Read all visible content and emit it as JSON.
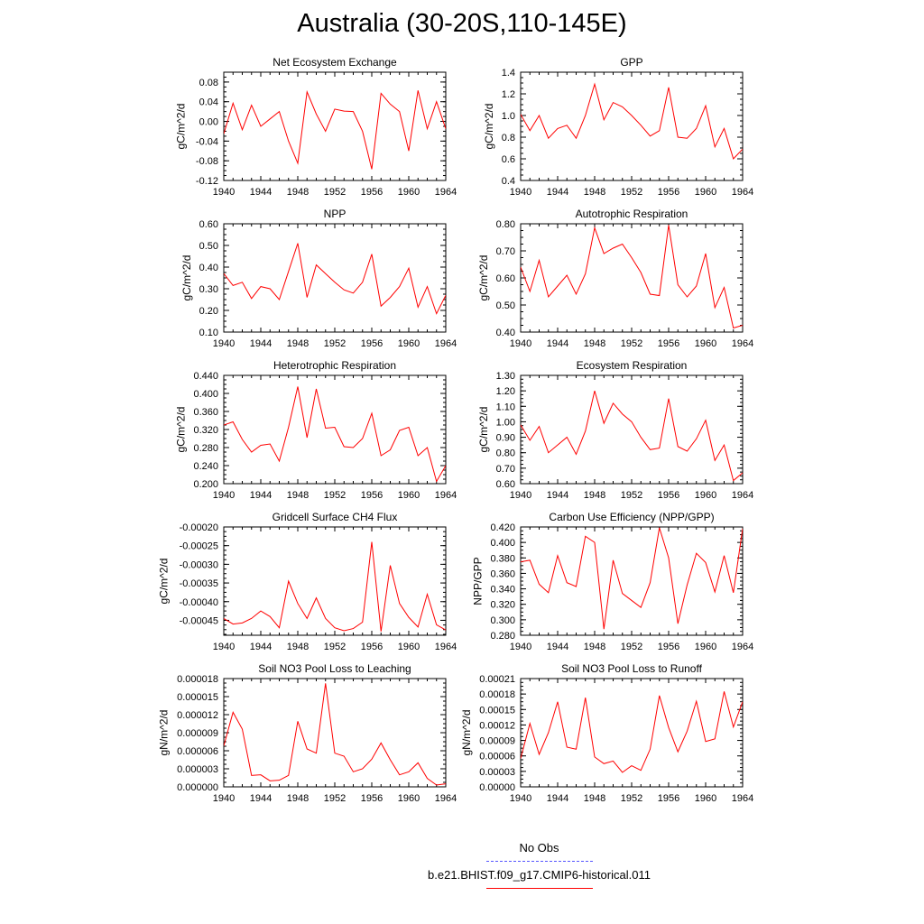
{
  "title": "Australia (30-20S,110-145E)",
  "colors": {
    "model": "#ff0000",
    "obs": "#5555ff",
    "axis": "#000000"
  },
  "legend": [
    {
      "label": "No Obs",
      "color": "#5555ff",
      "dash": "dashed"
    },
    {
      "label": "b.e21.BHIST.f09_g17.CMIP6-historical.011",
      "color": "#ff0000",
      "dash": "solid"
    }
  ],
  "chart_data": [
    {
      "type": "line",
      "title": "Net Ecosystem Exchange",
      "ylabel": "gC/m^2/d",
      "xlim": [
        1940,
        1964
      ],
      "xticks": [
        "1940",
        "1944",
        "1948",
        "1952",
        "1956",
        "1960",
        "1964"
      ],
      "ylim": [
        -0.12,
        0.1
      ],
      "yticks": [
        "-0.12",
        "-0.08",
        "-0.04",
        "0.00",
        "0.04",
        "0.08"
      ],
      "x": [
        1940,
        1941,
        1942,
        1943,
        1944,
        1945,
        1946,
        1947,
        1948,
        1949,
        1950,
        1951,
        1952,
        1953,
        1954,
        1955,
        1956,
        1957,
        1958,
        1959,
        1960,
        1961,
        1962,
        1963,
        1964
      ],
      "series": [
        {
          "values": [
            -0.025,
            0.037,
            -0.017,
            0.033,
            -0.01,
            0.005,
            0.02,
            -0.04,
            -0.085,
            0.06,
            0.015,
            -0.02,
            0.025,
            0.021,
            0.02,
            -0.02,
            -0.097,
            0.057,
            0.035,
            0.02,
            -0.06,
            0.063,
            -0.015,
            0.04,
            -0.015
          ]
        }
      ]
    },
    {
      "type": "line",
      "title": "GPP",
      "ylabel": "gC/m^2/d",
      "xlim": [
        1940,
        1964
      ],
      "xticks": [
        "1940",
        "1944",
        "1948",
        "1952",
        "1956",
        "1960",
        "1964"
      ],
      "ylim": [
        0.4,
        1.4
      ],
      "yticks": [
        "0.4",
        "0.6",
        "0.8",
        "1.0",
        "1.2",
        "1.4"
      ],
      "x": [
        1940,
        1941,
        1942,
        1943,
        1944,
        1945,
        1946,
        1947,
        1948,
        1949,
        1950,
        1951,
        1952,
        1953,
        1954,
        1955,
        1956,
        1957,
        1958,
        1959,
        1960,
        1961,
        1962,
        1963,
        1964
      ],
      "series": [
        {
          "values": [
            1.01,
            0.86,
            1.0,
            0.79,
            0.88,
            0.91,
            0.79,
            1.0,
            1.29,
            0.96,
            1.12,
            1.08,
            1.0,
            0.91,
            0.81,
            0.86,
            1.26,
            0.8,
            0.79,
            0.88,
            1.09,
            0.71,
            0.88,
            0.6,
            0.69
          ]
        }
      ]
    },
    {
      "type": "line",
      "title": "NPP",
      "ylabel": "gC/m^2/d",
      "xlim": [
        1940,
        1964
      ],
      "xticks": [
        "1940",
        "1944",
        "1948",
        "1952",
        "1956",
        "1960",
        "1964"
      ],
      "ylim": [
        0.1,
        0.6
      ],
      "yticks": [
        "0.10",
        "0.20",
        "0.30",
        "0.40",
        "0.50",
        "0.60"
      ],
      "x": [
        1940,
        1941,
        1942,
        1943,
        1944,
        1945,
        1946,
        1947,
        1948,
        1949,
        1950,
        1951,
        1952,
        1953,
        1954,
        1955,
        1956,
        1957,
        1958,
        1959,
        1960,
        1961,
        1962,
        1963,
        1964
      ],
      "series": [
        {
          "values": [
            0.37,
            0.315,
            0.33,
            0.255,
            0.31,
            0.3,
            0.25,
            0.38,
            0.51,
            0.26,
            0.41,
            0.37,
            0.33,
            0.295,
            0.28,
            0.33,
            0.46,
            0.22,
            0.26,
            0.31,
            0.395,
            0.215,
            0.31,
            0.185,
            0.27
          ]
        }
      ]
    },
    {
      "type": "line",
      "title": "Autotrophic Respiration",
      "ylabel": "gC/m^2/d",
      "xlim": [
        1940,
        1964
      ],
      "xticks": [
        "1940",
        "1944",
        "1948",
        "1952",
        "1956",
        "1960",
        "1964"
      ],
      "ylim": [
        0.4,
        0.8
      ],
      "yticks": [
        "0.40",
        "0.50",
        "0.60",
        "0.70",
        "0.80"
      ],
      "x": [
        1940,
        1941,
        1942,
        1943,
        1944,
        1945,
        1946,
        1947,
        1948,
        1949,
        1950,
        1951,
        1952,
        1953,
        1954,
        1955,
        1956,
        1957,
        1958,
        1959,
        1960,
        1961,
        1962,
        1963,
        1964
      ],
      "series": [
        {
          "values": [
            0.64,
            0.55,
            0.665,
            0.53,
            0.57,
            0.61,
            0.54,
            0.615,
            0.785,
            0.69,
            0.71,
            0.725,
            0.675,
            0.62,
            0.54,
            0.535,
            0.795,
            0.575,
            0.53,
            0.57,
            0.69,
            0.49,
            0.565,
            0.415,
            0.425
          ]
        }
      ]
    },
    {
      "type": "line",
      "title": "Heterotrophic Respiration",
      "ylabel": "gC/m^2/d",
      "xlim": [
        1940,
        1964
      ],
      "xticks": [
        "1940",
        "1944",
        "1948",
        "1952",
        "1956",
        "1960",
        "1964"
      ],
      "ylim": [
        0.2,
        0.44
      ],
      "yticks": [
        "0.200",
        "0.240",
        "0.280",
        "0.320",
        "0.360",
        "0.400",
        "0.440"
      ],
      "x": [
        1940,
        1941,
        1942,
        1943,
        1944,
        1945,
        1946,
        1947,
        1948,
        1949,
        1950,
        1951,
        1952,
        1953,
        1954,
        1955,
        1956,
        1957,
        1958,
        1959,
        1960,
        1961,
        1962,
        1963,
        1964
      ],
      "series": [
        {
          "values": [
            0.33,
            0.337,
            0.298,
            0.27,
            0.285,
            0.288,
            0.25,
            0.325,
            0.415,
            0.302,
            0.41,
            0.323,
            0.325,
            0.282,
            0.28,
            0.3,
            0.356,
            0.262,
            0.275,
            0.318,
            0.325,
            0.262,
            0.28,
            0.205,
            0.24
          ]
        }
      ]
    },
    {
      "type": "line",
      "title": "Ecosystem Respiration",
      "ylabel": "gC/m^2/d",
      "xlim": [
        1940,
        1964
      ],
      "xticks": [
        "1940",
        "1944",
        "1948",
        "1952",
        "1956",
        "1960",
        "1964"
      ],
      "ylim": [
        0.6,
        1.3
      ],
      "yticks": [
        "0.60",
        "0.70",
        "0.80",
        "0.90",
        "1.00",
        "1.10",
        "1.20",
        "1.30"
      ],
      "x": [
        1940,
        1941,
        1942,
        1943,
        1944,
        1945,
        1946,
        1947,
        1948,
        1949,
        1950,
        1951,
        1952,
        1953,
        1954,
        1955,
        1956,
        1957,
        1958,
        1959,
        1960,
        1961,
        1962,
        1963,
        1964
      ],
      "series": [
        {
          "values": [
            0.98,
            0.88,
            0.97,
            0.8,
            0.85,
            0.9,
            0.79,
            0.94,
            1.2,
            0.99,
            1.12,
            1.05,
            1.0,
            0.9,
            0.82,
            0.83,
            1.15,
            0.84,
            0.81,
            0.89,
            1.01,
            0.75,
            0.85,
            0.62,
            0.67
          ]
        }
      ]
    },
    {
      "type": "line",
      "title": "Gridcell Surface CH4 Flux",
      "ylabel": "gC/m^2/d",
      "xlim": [
        1940,
        1964
      ],
      "xticks": [
        "1940",
        "1944",
        "1948",
        "1952",
        "1956",
        "1960",
        "1964"
      ],
      "ylim": [
        -0.00049,
        -0.0002
      ],
      "yticks": [
        "-0.00045",
        "-0.00040",
        "-0.00035",
        "-0.00030",
        "-0.00025",
        "-0.00020"
      ],
      "x": [
        1940,
        1941,
        1942,
        1943,
        1944,
        1945,
        1946,
        1947,
        1948,
        1949,
        1950,
        1951,
        1952,
        1953,
        1954,
        1955,
        1956,
        1957,
        1958,
        1959,
        1960,
        1961,
        1962,
        1963,
        1964
      ],
      "series": [
        {
          "values": [
            -0.000445,
            -0.00046,
            -0.000457,
            -0.000445,
            -0.000425,
            -0.00044,
            -0.00047,
            -0.000345,
            -0.000405,
            -0.000445,
            -0.00039,
            -0.000445,
            -0.00047,
            -0.000478,
            -0.000472,
            -0.000455,
            -0.00024,
            -0.00048,
            -0.000303,
            -0.000405,
            -0.000442,
            -0.000468,
            -0.00038,
            -0.000462,
            -0.000476
          ]
        }
      ]
    },
    {
      "type": "line",
      "title": "Carbon Use Efficiency (NPP/GPP)",
      "ylabel": "NPP/GPP",
      "xlim": [
        1940,
        1964
      ],
      "xticks": [
        "1940",
        "1944",
        "1948",
        "1952",
        "1956",
        "1960",
        "1964"
      ],
      "ylim": [
        0.28,
        0.42
      ],
      "yticks": [
        "0.280",
        "0.300",
        "0.320",
        "0.340",
        "0.360",
        "0.380",
        "0.400",
        "0.420"
      ],
      "x": [
        1940,
        1941,
        1942,
        1943,
        1944,
        1945,
        1946,
        1947,
        1948,
        1949,
        1950,
        1951,
        1952,
        1953,
        1954,
        1955,
        1956,
        1957,
        1958,
        1959,
        1960,
        1961,
        1962,
        1963,
        1964
      ],
      "series": [
        {
          "values": [
            0.375,
            0.377,
            0.346,
            0.335,
            0.383,
            0.348,
            0.343,
            0.408,
            0.4,
            0.288,
            0.377,
            0.334,
            0.325,
            0.316,
            0.348,
            0.419,
            0.38,
            0.295,
            0.345,
            0.386,
            0.374,
            0.336,
            0.383,
            0.335,
            0.418
          ]
        }
      ]
    },
    {
      "type": "line",
      "title": "Soil NO3 Pool Loss to Leaching",
      "ylabel": "gN/m^2/d",
      "xlim": [
        1940,
        1964
      ],
      "xticks": [
        "1940",
        "1944",
        "1948",
        "1952",
        "1956",
        "1960",
        "1964"
      ],
      "ylim": [
        0,
        1.8e-05
      ],
      "yticks": [
        "0.000000",
        "0.000003",
        "0.000006",
        "0.000009",
        "0.000012",
        "0.000015",
        "0.000018"
      ],
      "x": [
        1940,
        1941,
        1942,
        1943,
        1944,
        1945,
        1946,
        1947,
        1948,
        1949,
        1950,
        1951,
        1952,
        1953,
        1954,
        1955,
        1956,
        1957,
        1958,
        1959,
        1960,
        1961,
        1962,
        1963,
        1964
      ],
      "series": [
        {
          "values": [
            6.8e-06,
            1.24e-05,
            9.6e-06,
            1.9e-06,
            2e-06,
            1e-06,
            1.1e-06,
            1.9e-06,
            1.09e-05,
            6.3e-06,
            5.6e-06,
            1.72e-05,
            5.6e-06,
            5.1e-06,
            2.5e-06,
            3e-06,
            4.6e-06,
            7.3e-06,
            4.5e-06,
            2e-06,
            2.5e-06,
            4e-06,
            1.4e-06,
            3e-07,
            5e-07
          ]
        }
      ]
    },
    {
      "type": "line",
      "title": "Soil NO3 Pool Loss to Runoff",
      "ylabel": "gN/m^2/d",
      "xlim": [
        1940,
        1964
      ],
      "xticks": [
        "1940",
        "1944",
        "1948",
        "1952",
        "1956",
        "1960",
        "1964"
      ],
      "ylim": [
        0,
        0.00021
      ],
      "yticks": [
        "0.00000",
        "0.00003",
        "0.00006",
        "0.00009",
        "0.00012",
        "0.00015",
        "0.00018",
        "0.00021"
      ],
      "x": [
        1940,
        1941,
        1942,
        1943,
        1944,
        1945,
        1946,
        1947,
        1948,
        1949,
        1950,
        1951,
        1952,
        1953,
        1954,
        1955,
        1956,
        1957,
        1958,
        1959,
        1960,
        1961,
        1962,
        1963,
        1964
      ],
      "series": [
        {
          "values": [
            5.5e-05,
            0.000123,
            6.3e-05,
            0.000105,
            0.000165,
            7.7e-05,
            7.3e-05,
            0.000173,
            5.8e-05,
            4.5e-05,
            5e-05,
            2.8e-05,
            4.1e-05,
            3.2e-05,
            7.3e-05,
            0.000177,
            0.000115,
            6.8e-05,
            0.000108,
            0.000166,
            8.8e-05,
            9.3e-05,
            0.000185,
            0.000116,
            0.000165
          ]
        }
      ]
    }
  ]
}
